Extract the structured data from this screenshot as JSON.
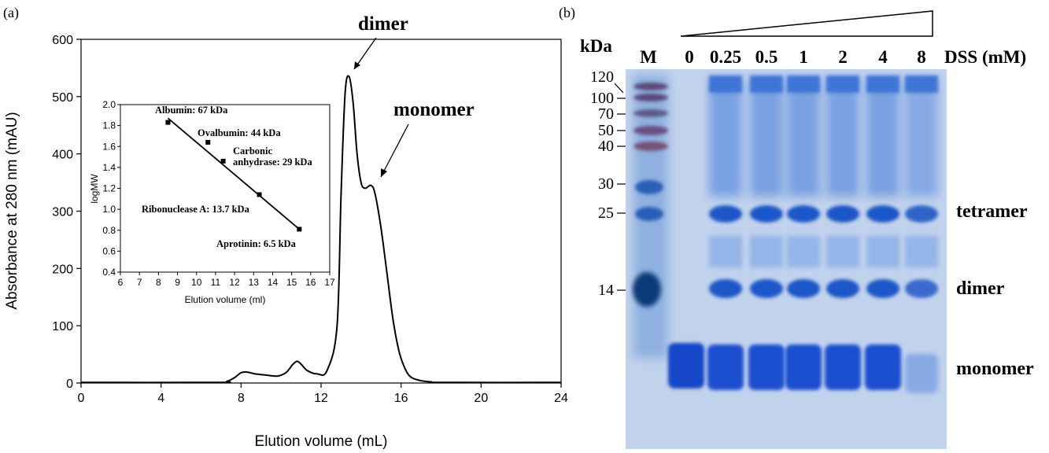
{
  "panel_a_label": "(a)",
  "panel_b_label": "(b)",
  "chart_data": [
    {
      "type": "line",
      "xlabel": "Elution volume (mL)",
      "ylabel": "Absorbance at 280 nm (mAU)",
      "xlim": [
        0,
        24
      ],
      "ylim": [
        0,
        600
      ],
      "xticks": [
        0,
        4,
        8,
        12,
        16,
        20,
        24
      ],
      "yticks": [
        0,
        100,
        200,
        300,
        400,
        500,
        600
      ],
      "x": [
        0,
        6.8,
        7.3,
        7.7,
        8.0,
        8.3,
        8.7,
        9.2,
        9.8,
        10.2,
        10.4,
        10.6,
        10.8,
        11.0,
        11.3,
        11.8,
        12.3,
        12.8,
        13.0,
        13.2,
        13.4,
        13.6,
        13.8,
        14.0,
        14.2,
        14.5,
        14.7,
        15.0,
        15.3,
        15.6,
        15.9,
        16.2,
        16.5,
        17.0,
        17.5,
        18.0,
        24
      ],
      "y": [
        1,
        1,
        3,
        10,
        18,
        19,
        16,
        14,
        12,
        17,
        24,
        33,
        38,
        33,
        22,
        16,
        22,
        100,
        330,
        505,
        535,
        490,
        400,
        350,
        340,
        345,
        330,
        270,
        190,
        110,
        55,
        25,
        10,
        4,
        2,
        1,
        1
      ],
      "annotations": [
        {
          "text": "dimer",
          "x": 13.4,
          "y": 535
        },
        {
          "text": "monomer",
          "x": 14.5,
          "y": 345
        }
      ]
    },
    {
      "type": "scatter",
      "xlabel": "Elution volume (ml)",
      "ylabel": "logMW",
      "xlim": [
        6,
        17
      ],
      "ylim": [
        0.4,
        2.0
      ],
      "xticks": [
        6,
        7,
        8,
        9,
        10,
        11,
        12,
        13,
        14,
        15,
        16,
        17
      ],
      "yticks": [
        0.4,
        0.6,
        0.8,
        1.0,
        1.2,
        1.4,
        1.6,
        1.8,
        2.0
      ],
      "points": [
        {
          "label": "Albumin: 67 kDa",
          "x": 8.5,
          "y": 1.83
        },
        {
          "label": "Ovalbumin: 44 kDa",
          "x": 10.6,
          "y": 1.64
        },
        {
          "label": "Carbonic anhydrase: 29 kDa",
          "x": 11.4,
          "y": 1.46
        },
        {
          "label": "Ribonuclease A: 13.7 kDa",
          "x": 13.3,
          "y": 1.14
        },
        {
          "label": "Aprotinin: 6.5 kDa",
          "x": 15.4,
          "y": 0.81
        }
      ],
      "fit": {
        "x": [
          8.5,
          15.4
        ],
        "y": [
          1.87,
          0.81
        ]
      }
    }
  ],
  "gel": {
    "kda_label": "kDa",
    "lane_labels": [
      "M",
      "0",
      "0.25",
      "0.5",
      "1",
      "2",
      "4",
      "8"
    ],
    "reagent_label": "DSS (mM)",
    "marker_labels": [
      "120",
      "100",
      "70",
      "50",
      "40",
      "30",
      "25",
      "14"
    ],
    "band_labels": [
      "tetramer",
      "dimer",
      "monomer"
    ]
  }
}
